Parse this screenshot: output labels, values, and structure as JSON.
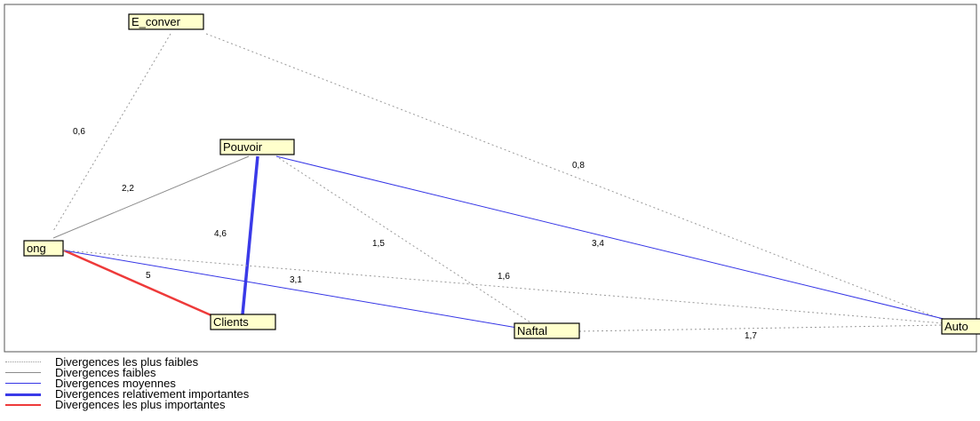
{
  "nodes": [
    {
      "id": "E_conver",
      "label": "E_conver"
    },
    {
      "id": "Pouvoir",
      "label": "Pouvoir"
    },
    {
      "id": "ong",
      "label": "ong"
    },
    {
      "id": "Clients",
      "label": "Clients"
    },
    {
      "id": "Naftal",
      "label": "Naftal"
    },
    {
      "id": "Auto",
      "label": "Auto"
    }
  ],
  "edges": [
    {
      "from": "E_conver",
      "to": "ong",
      "value": "0,6",
      "level": "plus_faibles"
    },
    {
      "from": "E_conver",
      "to": "Auto",
      "value": "0,8",
      "level": "plus_faibles"
    },
    {
      "from": "Pouvoir",
      "to": "ong",
      "value": "2,2",
      "level": "faibles"
    },
    {
      "from": "Pouvoir",
      "to": "Clients",
      "value": "4,6",
      "level": "relativement_importantes"
    },
    {
      "from": "Pouvoir",
      "to": "Naftal",
      "value": "1,5",
      "level": "plus_faibles"
    },
    {
      "from": "Pouvoir",
      "to": "Auto",
      "value": "3,4",
      "level": "moyennes"
    },
    {
      "from": "ong",
      "to": "Clients",
      "value": "5",
      "level": "plus_importantes"
    },
    {
      "from": "ong",
      "to": "Naftal",
      "value": "3,1",
      "level": "moyennes"
    },
    {
      "from": "ong",
      "to": "Auto",
      "value": "1,6",
      "level": "plus_faibles"
    },
    {
      "from": "Naftal",
      "to": "Auto",
      "value": "1,7",
      "level": "plus_faibles"
    }
  ],
  "legend": [
    {
      "level": "plus_faibles",
      "label": "Divergences les plus faibles"
    },
    {
      "level": "faibles",
      "label": "Divergences faibles"
    },
    {
      "level": "moyennes",
      "label": "Divergences moyennes"
    },
    {
      "level": "relativement_importantes",
      "label": "Divergences relativement importantes"
    },
    {
      "level": "plus_importantes",
      "label": "Divergences les plus importantes"
    }
  ],
  "colors": {
    "plus_faibles": "#9a9a9a",
    "faibles": "#8c8c8c",
    "moyennes": "#3535e6",
    "relativement_importantes": "#3a3ae8",
    "plus_importantes": "#ee3a3a",
    "node_fill": "#ffffcc"
  }
}
